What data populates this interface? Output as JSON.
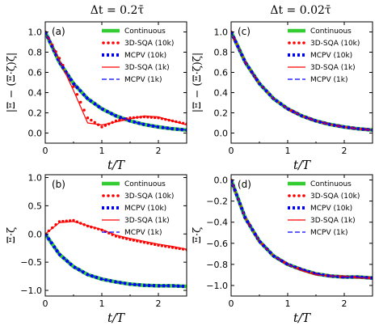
{
  "columns": [
    {
      "title": "Δt = 0.2τ̄"
    },
    {
      "title": "Δt = 0.02τ̄"
    }
  ],
  "colors": {
    "continuous": "#33cc33",
    "sqa10k": "#ff0000",
    "mcpv10k": "#0000ff",
    "sqa1k": "#ff0000",
    "mcpv1k": "#0000ff"
  },
  "chart_data": [
    {
      "panel_label": "(a)",
      "type": "line",
      "xlabel": "t/T",
      "ylabel": "|Ξ − (Ξ·ζ)ζ|",
      "xlim": [
        0,
        2.5
      ],
      "ylim": [
        -0.1,
        1.1
      ],
      "xticks": [
        0,
        1,
        2
      ],
      "yticks": [
        0.0,
        0.2,
        0.4,
        0.6,
        0.8,
        1.0
      ],
      "x": [
        0,
        0.25,
        0.5,
        0.75,
        1.0,
        1.25,
        1.5,
        1.75,
        2.0,
        2.25,
        2.5
      ],
      "series": [
        {
          "name": "Continuous",
          "values": [
            1.0,
            0.7,
            0.49,
            0.34,
            0.24,
            0.17,
            0.12,
            0.085,
            0.06,
            0.042,
            0.03
          ]
        },
        {
          "name": "3D-SQA (10k)",
          "values": [
            1.0,
            0.74,
            0.46,
            0.15,
            0.06,
            0.12,
            0.15,
            0.16,
            0.15,
            0.12,
            0.09
          ]
        },
        {
          "name": "MCPV (10k)",
          "values": [
            1.0,
            0.7,
            0.49,
            0.34,
            0.24,
            0.17,
            0.12,
            0.085,
            0.06,
            0.042,
            0.03
          ]
        },
        {
          "name": "3D-SQA (1k)",
          "values": [
            1.0,
            0.72,
            0.42,
            0.1,
            0.08,
            0.11,
            0.14,
            0.17,
            0.16,
            0.12,
            0.08
          ]
        },
        {
          "name": "MCPV (1k)",
          "values": [
            1.0,
            0.7,
            0.49,
            0.34,
            0.24,
            0.17,
            0.12,
            0.085,
            0.06,
            0.042,
            0.03
          ]
        }
      ]
    },
    {
      "panel_label": "(c)",
      "type": "line",
      "xlabel": "t/T",
      "ylabel": "|Ξ − (Ξ·ζ)ζ|",
      "xlim": [
        0,
        2.5
      ],
      "ylim": [
        -0.1,
        1.1
      ],
      "xticks": [
        0,
        1,
        2
      ],
      "yticks": [
        0.0,
        0.2,
        0.4,
        0.6,
        0.8,
        1.0
      ],
      "x": [
        0,
        0.25,
        0.5,
        0.75,
        1.0,
        1.25,
        1.5,
        1.75,
        2.0,
        2.25,
        2.5
      ],
      "series": [
        {
          "name": "Continuous",
          "values": [
            1.0,
            0.7,
            0.49,
            0.34,
            0.24,
            0.17,
            0.12,
            0.085,
            0.06,
            0.042,
            0.03
          ]
        },
        {
          "name": "3D-SQA (10k)",
          "values": [
            1.0,
            0.7,
            0.49,
            0.34,
            0.24,
            0.17,
            0.12,
            0.085,
            0.06,
            0.042,
            0.03
          ]
        },
        {
          "name": "MCPV (10k)",
          "values": [
            1.0,
            0.7,
            0.49,
            0.34,
            0.24,
            0.17,
            0.12,
            0.085,
            0.06,
            0.042,
            0.03
          ]
        },
        {
          "name": "3D-SQA (1k)",
          "values": [
            1.0,
            0.7,
            0.49,
            0.34,
            0.24,
            0.17,
            0.12,
            0.085,
            0.06,
            0.042,
            0.03
          ]
        },
        {
          "name": "MCPV (1k)",
          "values": [
            1.0,
            0.7,
            0.49,
            0.34,
            0.24,
            0.17,
            0.12,
            0.085,
            0.06,
            0.042,
            0.03
          ]
        }
      ]
    },
    {
      "panel_label": "(b)",
      "type": "line",
      "xlabel": "t/T",
      "ylabel": "Ξ·ζ",
      "xlim": [
        0,
        2.5
      ],
      "ylim": [
        -1.1,
        1.05
      ],
      "xticks": [
        0,
        1,
        2
      ],
      "yticks": [
        -1.0,
        -0.5,
        0.0,
        0.5,
        1.0
      ],
      "x": [
        0,
        0.25,
        0.5,
        0.75,
        1.0,
        1.25,
        1.5,
        1.75,
        2.0,
        2.25,
        2.5
      ],
      "series": [
        {
          "name": "Continuous",
          "values": [
            0.0,
            -0.36,
            -0.58,
            -0.72,
            -0.8,
            -0.85,
            -0.89,
            -0.91,
            -0.92,
            -0.92,
            -0.93
          ]
        },
        {
          "name": "3D-SQA (10k)",
          "values": [
            0.0,
            0.22,
            0.24,
            0.14,
            0.07,
            -0.04,
            -0.1,
            -0.15,
            -0.2,
            -0.24,
            -0.28
          ]
        },
        {
          "name": "MCPV (10k)",
          "values": [
            0.0,
            -0.36,
            -0.58,
            -0.72,
            -0.8,
            -0.85,
            -0.89,
            -0.91,
            -0.92,
            -0.92,
            -0.93
          ]
        },
        {
          "name": "3D-SQA (1k)",
          "values": [
            0.0,
            0.2,
            0.22,
            0.15,
            0.08,
            -0.02,
            -0.08,
            -0.13,
            -0.18,
            -0.22,
            -0.27
          ]
        },
        {
          "name": "MCPV (1k)",
          "values": [
            0.0,
            -0.36,
            -0.58,
            -0.72,
            -0.8,
            -0.85,
            -0.89,
            -0.91,
            -0.92,
            -0.92,
            -0.93
          ]
        }
      ]
    },
    {
      "panel_label": "(d)",
      "type": "line",
      "xlabel": "t/T",
      "ylabel": "Ξ·ζ",
      "xlim": [
        0,
        2.5
      ],
      "ylim": [
        -1.1,
        0.05
      ],
      "xticks": [
        0,
        1,
        2
      ],
      "yticks": [
        -1.0,
        -0.8,
        -0.6,
        -0.4,
        -0.2,
        0.0
      ],
      "x": [
        0,
        0.25,
        0.5,
        0.75,
        1.0,
        1.25,
        1.5,
        1.75,
        2.0,
        2.25,
        2.5
      ],
      "series": [
        {
          "name": "Continuous",
          "values": [
            0.0,
            -0.36,
            -0.58,
            -0.72,
            -0.8,
            -0.85,
            -0.89,
            -0.91,
            -0.92,
            -0.92,
            -0.93
          ]
        },
        {
          "name": "3D-SQA (10k)",
          "values": [
            0.0,
            -0.36,
            -0.58,
            -0.72,
            -0.8,
            -0.85,
            -0.89,
            -0.91,
            -0.92,
            -0.92,
            -0.93
          ]
        },
        {
          "name": "MCPV (10k)",
          "values": [
            0.0,
            -0.36,
            -0.58,
            -0.72,
            -0.8,
            -0.85,
            -0.89,
            -0.91,
            -0.92,
            -0.92,
            -0.93
          ]
        },
        {
          "name": "3D-SQA (1k)",
          "values": [
            0.0,
            -0.36,
            -0.58,
            -0.72,
            -0.8,
            -0.86,
            -0.9,
            -0.91,
            -0.91,
            -0.93,
            -0.93
          ]
        },
        {
          "name": "MCPV (1k)",
          "values": [
            0.0,
            -0.36,
            -0.58,
            -0.72,
            -0.8,
            -0.85,
            -0.89,
            -0.91,
            -0.92,
            -0.92,
            -0.93
          ]
        }
      ]
    }
  ]
}
